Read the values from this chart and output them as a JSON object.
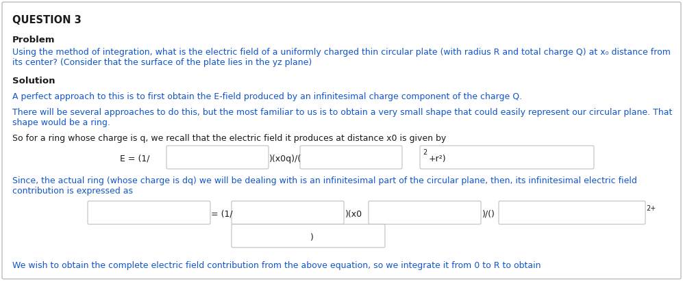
{
  "title": "QUESTION 3",
  "bg_color": "#ffffff",
  "text_color_black": "#1a1a1a",
  "text_color_blue": "#1155cc",
  "text_color_darkblue": "#1a0dab",
  "problem_label": "Problem",
  "problem_line1": "Using the method of integration, what is the electric field of a uniformly charged thin circular plate (with radius R and total charge Q) at x₀ distance from",
  "problem_line2": "its center? (Consider that the surface of the plate lies in the yz plane)",
  "solution_label": "Solution",
  "sol_para1": "A perfect approach to this is to first obtain the E-field produced by an infinitesimal charge component of the charge Q.",
  "sol_para2_l1": "There will be several approaches to do this, but the most familiar to us is to obtain a very small shape that could easily represent our circular plane. That",
  "sol_para2_l2": "shape would be a ring.",
  "sol_para3": "So for a ring whose charge is q, we recall that the electric field it produces at distance x0 is given by",
  "eq1_left_text": "E = (1/",
  "eq1_mid_text": ")(x0q)/(",
  "eq1_super": "2",
  "eq1_right_text": "+r²)",
  "since_l1": "Since, the actual ring (whose charge is dq) we will be dealing with is an infinitesimal part of the circular plane, then, its infinitesimal electric field",
  "since_l2": "contribution is expressed as",
  "eq2_left_text": "= (1/",
  "eq2_mid_text": ")(x0",
  "eq2_right_text": ")/()",
  "eq2_super": "2+",
  "eq2_bottom_text": ")",
  "final_line": "We wish to obtain the complete electric field contribution from the above equation, so we integrate it from 0 to R to obtain",
  "fs": 9.0,
  "fs_title": 10.5,
  "fs_bold": 9.5,
  "fs_super": 7.0
}
